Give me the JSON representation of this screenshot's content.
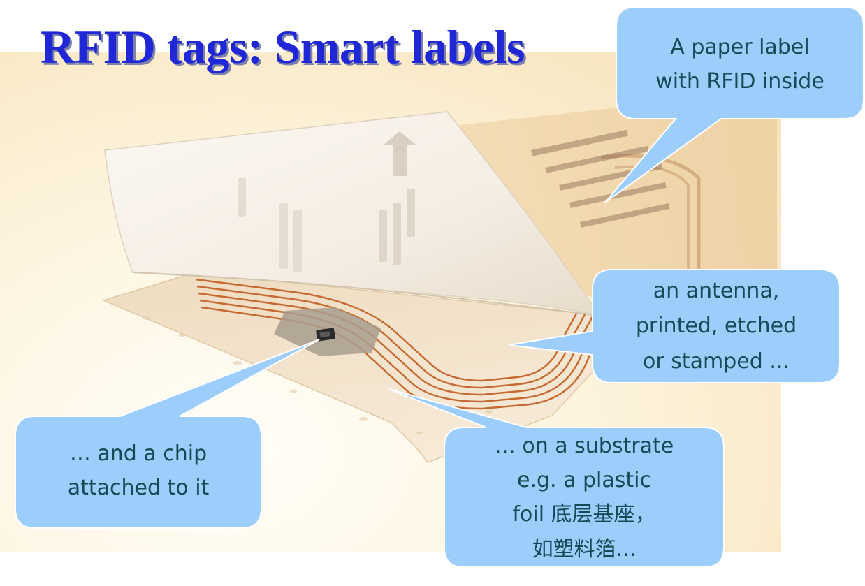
{
  "title": "RFID tags: Smart labels",
  "callouts": {
    "paper_label": {
      "lines": [
        "A paper label",
        "with RFID inside"
      ]
    },
    "antenna": {
      "lines": [
        "an antenna,",
        "printed, etched",
        "or stamped ..."
      ]
    },
    "chip": {
      "lines": [
        "… and a chip",
        "attached to it"
      ]
    },
    "substrate": {
      "lines": [
        "… on a substrate",
        "e.g. a plastic",
        "foil 底层基座，",
        "如塑料箔..."
      ]
    }
  },
  "colors": {
    "title_text": "#1f27d6",
    "title_shadow": "#7d80a8",
    "callout_fill": "#9ccdfb",
    "callout_text": "#174a56",
    "antenna_copper": "#c4632b"
  }
}
